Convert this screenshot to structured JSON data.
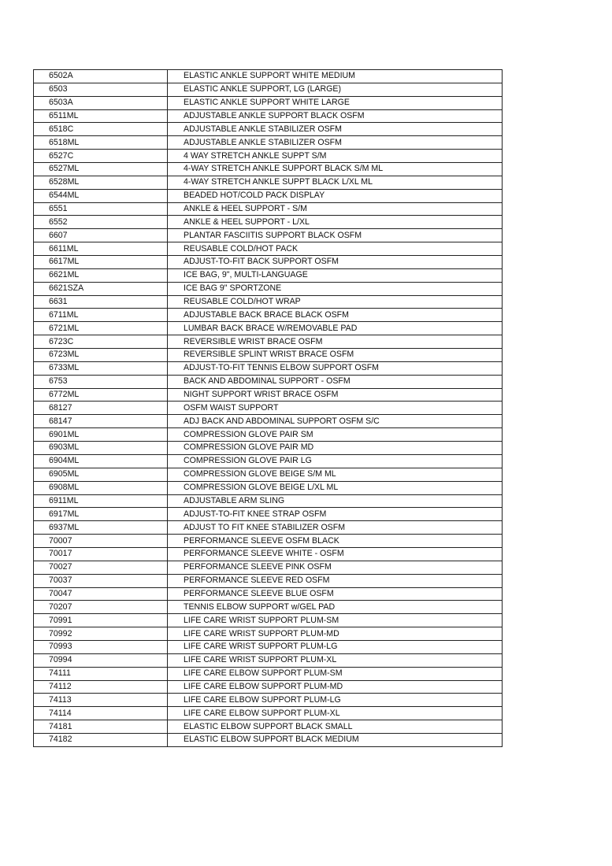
{
  "table": {
    "rows": [
      [
        "6502A",
        "ELASTIC ANKLE SUPPORT WHITE MEDIUM"
      ],
      [
        "6503",
        "ELASTIC ANKLE SUPPORT, LG (LARGE)"
      ],
      [
        "6503A",
        "ELASTIC ANKLE SUPPORT WHITE LARGE"
      ],
      [
        "6511ML",
        "ADJUSTABLE ANKLE SUPPORT BLACK OSFM"
      ],
      [
        "6518C",
        "ADJUSTABLE ANKLE STABILIZER OSFM"
      ],
      [
        "6518ML",
        "ADJUSTABLE ANKLE STABILIZER OSFM"
      ],
      [
        "6527C",
        "4 WAY STRETCH ANKLE SUPPT S/M"
      ],
      [
        "6527ML",
        "4-WAY STRETCH ANKLE SUPPORT BLACK S/M ML"
      ],
      [
        "6528ML",
        "4-WAY STRETCH ANKLE SUPPT BLACK L/XL ML"
      ],
      [
        "6544ML",
        "BEADED HOT/COLD PACK DISPLAY"
      ],
      [
        "6551",
        "ANKLE & HEEL SUPPORT - S/M"
      ],
      [
        "6552",
        "ANKLE & HEEL SUPPORT - L/XL"
      ],
      [
        "6607",
        "PLANTAR FASCIITIS SUPPORT BLACK OSFM"
      ],
      [
        "6611ML",
        "REUSABLE COLD/HOT PACK"
      ],
      [
        "6617ML",
        "ADJUST-TO-FIT BACK SUPPORT OSFM"
      ],
      [
        "6621ML",
        "ICE BAG, 9\", MULTI-LANGUAGE"
      ],
      [
        "6621SZA",
        "ICE BAG 9\" SPORTZONE"
      ],
      [
        "6631",
        "REUSABLE COLD/HOT WRAP"
      ],
      [
        "6711ML",
        "ADJUSTABLE BACK BRACE BLACK OSFM"
      ],
      [
        "6721ML",
        "LUMBAR BACK BRACE W/REMOVABLE PAD"
      ],
      [
        "6723C",
        "REVERSIBLE WRIST BRACE OSFM"
      ],
      [
        "6723ML",
        "REVERSIBLE SPLINT WRIST BRACE OSFM"
      ],
      [
        "6733ML",
        "ADJUST-TO-FIT TENNIS ELBOW SUPPORT OSFM"
      ],
      [
        "6753",
        "BACK AND ABDOMINAL SUPPORT  - OSFM"
      ],
      [
        "6772ML",
        "NIGHT SUPPORT WRIST BRACE OSFM"
      ],
      [
        "68127",
        "OSFM WAIST SUPPORT"
      ],
      [
        "68147",
        "ADJ BACK AND ABDOMINAL SUPPORT OSFM S/C"
      ],
      [
        "6901ML",
        "COMPRESSION GLOVE PAIR SM"
      ],
      [
        "6903ML",
        "COMPRESSION GLOVE PAIR MD"
      ],
      [
        "6904ML",
        "COMPRESSION GLOVE PAIR LG"
      ],
      [
        "6905ML",
        "COMPRESSION GLOVE BEIGE S/M ML"
      ],
      [
        "6908ML",
        "COMPRESSION GLOVE BEIGE L/XL ML"
      ],
      [
        "6911ML",
        "ADJUSTABLE ARM SLING"
      ],
      [
        "6917ML",
        "ADJUST-TO-FIT KNEE STRAP OSFM"
      ],
      [
        "6937ML",
        "ADJUST TO FIT KNEE STABILIZER OSFM"
      ],
      [
        "70007",
        "PERFORMANCE SLEEVE OSFM BLACK"
      ],
      [
        "70017",
        "PERFORMANCE SLEEVE WHITE - OSFM"
      ],
      [
        "70027",
        "PERFORMANCE SLEEVE PINK OSFM"
      ],
      [
        "70037",
        "PERFORMANCE SLEEVE RED OSFM"
      ],
      [
        "70047",
        "PERFORMANCE SLEEVE BLUE OSFM"
      ],
      [
        "70207",
        "TENNIS ELBOW SUPPORT w/GEL PAD"
      ],
      [
        "70991",
        "LIFE CARE WRIST SUPPORT PLUM-SM"
      ],
      [
        "70992",
        "LIFE CARE WRIST SUPPORT PLUM-MD"
      ],
      [
        "70993",
        "LIFE CARE WRIST SUPPORT PLUM-LG"
      ],
      [
        "70994",
        "LIFE CARE WRIST SUPPORT PLUM-XL"
      ],
      [
        "74111",
        "LIFE CARE ELBOW SUPPORT PLUM-SM"
      ],
      [
        "74112",
        "LIFE CARE ELBOW SUPPORT PLUM-MD"
      ],
      [
        "74113",
        "LIFE CARE ELBOW SUPPORT PLUM-LG"
      ],
      [
        "74114",
        "LIFE CARE ELBOW SUPPORT PLUM-XL"
      ],
      [
        "74181",
        "ELASTIC ELBOW SUPPORT BLACK SMALL"
      ],
      [
        "74182",
        "ELASTIC ELBOW SUPPORT BLACK MEDIUM"
      ]
    ]
  },
  "colors": {
    "watermark": "#8ca0d2",
    "border": "#222222"
  }
}
